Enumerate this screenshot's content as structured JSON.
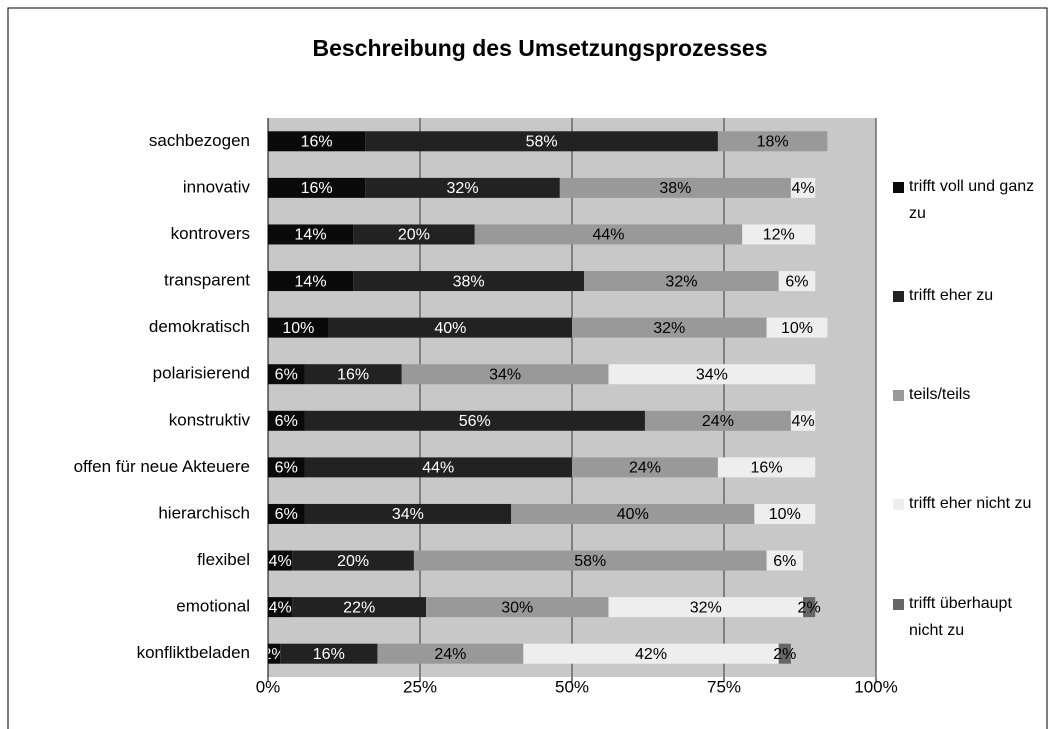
{
  "chart_data": {
    "type": "stacked-bar-horizontal",
    "title": "Beschreibung des Umsetzungsprozesses",
    "categories": [
      "sachbezogen",
      "innovativ",
      "kontrovers",
      "transparent",
      "demokratisch",
      "polarisierend",
      "konstruktiv",
      "offen für neue Akteuere",
      "hierarchisch",
      "flexibel",
      "emotional",
      "konfliktbeladen"
    ],
    "series": [
      {
        "name": "trifft voll und ganz zu",
        "color": "#0a0a0a",
        "values": [
          16,
          16,
          14,
          14,
          10,
          6,
          6,
          6,
          6,
          4,
          4,
          2
        ],
        "value_labels": [
          "16%",
          "16%",
          "14%",
          "14%",
          "10%",
          "6%",
          "6%",
          "6%",
          "6%",
          "4%",
          "4%",
          "2%"
        ]
      },
      {
        "name": "trifft eher zu",
        "color": "#222222",
        "values": [
          58,
          32,
          20,
          38,
          40,
          16,
          56,
          44,
          34,
          20,
          22,
          16
        ],
        "value_labels": [
          "58%",
          "32%",
          "20%",
          "38%",
          "40%",
          "16%",
          "56%",
          "44%",
          "34%",
          "20%",
          "22%",
          "16%"
        ]
      },
      {
        "name": "teils/teils",
        "color": "#999999",
        "values": [
          18,
          38,
          44,
          32,
          32,
          34,
          24,
          24,
          40,
          58,
          30,
          24
        ],
        "value_labels": [
          "18%",
          "38%",
          "44%",
          "32%",
          "32%",
          "34%",
          "24%",
          "24%",
          "40%",
          "58%",
          "30%",
          "24%"
        ]
      },
      {
        "name": "trifft eher nicht zu",
        "color": "#eeeeee",
        "values": [
          null,
          4,
          12,
          6,
          10,
          34,
          4,
          16,
          10,
          6,
          32,
          42
        ],
        "value_labels": [
          null,
          "4%",
          "12%",
          "6%",
          "10%",
          "34%",
          "4%",
          "16%",
          "10%",
          "6%",
          "32%",
          "42%"
        ]
      },
      {
        "name": "trifft überhaupt nicht zu",
        "color": "#666666",
        "values": [
          null,
          null,
          null,
          null,
          null,
          null,
          null,
          null,
          null,
          null,
          2,
          2
        ],
        "value_labels": [
          null,
          null,
          null,
          null,
          null,
          null,
          null,
          null,
          null,
          null,
          "2%",
          "2%"
        ]
      }
    ],
    "xlim": [
      0,
      100
    ],
    "xticks": [
      {
        "value": 0,
        "label": "0%"
      },
      {
        "value": 25,
        "label": "25%"
      },
      {
        "value": 50,
        "label": "50%"
      },
      {
        "value": 75,
        "label": "75%"
      },
      {
        "value": 100,
        "label": "100%"
      }
    ],
    "grid": true,
    "plot_background": "#c8c8c8",
    "legend": "right"
  }
}
